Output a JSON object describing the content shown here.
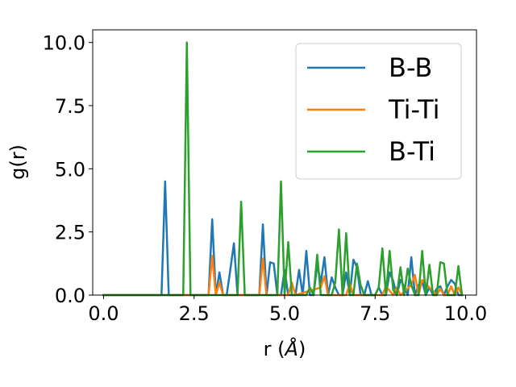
{
  "chart_data": {
    "type": "line",
    "xlabel_main": "r (",
    "xlabel_unit": "Å",
    "xlabel_close": ")",
    "ylabel": "g(r)",
    "xlim": [
      -0.3,
      10.3
    ],
    "ylim": [
      0,
      10.5
    ],
    "xticks": [
      0.0,
      2.5,
      5.0,
      7.5,
      10.0
    ],
    "xtick_labels": [
      "0.0",
      "2.5",
      "5.0",
      "7.5",
      "10.0"
    ],
    "yticks": [
      0.0,
      2.5,
      5.0,
      7.5,
      10.0
    ],
    "ytick_labels": [
      "0.0",
      "2.5",
      "5.0",
      "7.5",
      "10.0"
    ],
    "grid": false,
    "legend_position": "top-right",
    "series": [
      {
        "name": "B-B",
        "color": "#1f77b4",
        "x": [
          0.0,
          1.6,
          1.7,
          1.8,
          1.9,
          2.9,
          3.0,
          3.1,
          3.2,
          3.3,
          3.4,
          3.5,
          3.6,
          3.7,
          4.3,
          4.4,
          4.5,
          4.6,
          4.7,
          4.8,
          4.9,
          5.0,
          5.1,
          5.2,
          5.3,
          5.4,
          5.5,
          5.6,
          5.7,
          5.8,
          5.9,
          6.0,
          6.1,
          6.2,
          6.3,
          6.4,
          6.5,
          6.6,
          6.7,
          6.8,
          6.9,
          7.0,
          7.1,
          7.2,
          7.3,
          7.4,
          7.5,
          7.6,
          7.7,
          7.8,
          7.9,
          8.0,
          8.1,
          8.2,
          8.3,
          8.4,
          8.5,
          8.6,
          8.7,
          8.8,
          8.9,
          9.0,
          9.1,
          9.2,
          9.3,
          9.4,
          9.5,
          9.6,
          9.7,
          9.8,
          9.9
        ],
        "y": [
          0.0,
          0.0,
          4.5,
          0.0,
          0.0,
          0.0,
          3.0,
          0.0,
          0.9,
          0.0,
          0.0,
          1.0,
          2.05,
          0.0,
          0.0,
          2.8,
          0.0,
          1.3,
          1.25,
          0.0,
          0.0,
          1.0,
          0.0,
          0.0,
          0.0,
          1.0,
          0.0,
          1.75,
          0.0,
          0.0,
          1.2,
          0.5,
          1.5,
          0.0,
          0.7,
          0.3,
          0.0,
          0.0,
          0.9,
          0.0,
          1.4,
          1.1,
          0.0,
          0.0,
          0.55,
          0.0,
          0.0,
          0.3,
          0.0,
          0.0,
          0.9,
          0.55,
          0.0,
          0.6,
          0.35,
          0.0,
          1.5,
          0.0,
          0.4,
          0.55,
          0.0,
          0.3,
          0.0,
          0.25,
          0.35,
          0.0,
          0.35,
          0.6,
          0.45,
          0.0,
          0.0
        ]
      },
      {
        "name": "Ti-Ti",
        "color": "#ff7f0e",
        "x": [
          0.0,
          2.9,
          3.0,
          3.1,
          3.2,
          3.3,
          4.3,
          4.4,
          4.5,
          5.1,
          5.2,
          5.3,
          6.0,
          6.1,
          6.2,
          6.7,
          6.8,
          6.9,
          7.7,
          7.8,
          8.0,
          8.1,
          8.2,
          8.5,
          8.6,
          8.7,
          8.8,
          9.2,
          9.3,
          9.4,
          9.5,
          9.6,
          9.7,
          9.8,
          9.9
        ],
        "y": [
          0.0,
          0.0,
          1.55,
          0.0,
          0.5,
          0.0,
          0.0,
          1.45,
          0.0,
          0.0,
          0.5,
          0.0,
          0.3,
          0.75,
          0.0,
          0.0,
          0.45,
          0.0,
          0.0,
          0.35,
          0.0,
          0.3,
          0.0,
          0.4,
          0.8,
          0.0,
          0.6,
          0.0,
          0.25,
          0.0,
          0.0,
          0.35,
          0.0,
          0.3,
          0.0
        ]
      },
      {
        "name": "B-Ti",
        "color": "#2ca02c",
        "x": [
          0.0,
          2.2,
          2.3,
          2.4,
          3.7,
          3.8,
          3.9,
          4.8,
          4.9,
          5.0,
          5.1,
          5.2,
          5.6,
          5.7,
          5.8,
          5.9,
          6.0,
          6.1,
          6.3,
          6.4,
          6.5,
          6.6,
          6.7,
          6.8,
          6.9,
          7.0,
          7.1,
          7.2,
          7.5,
          7.6,
          7.7,
          7.8,
          7.9,
          8.0,
          8.1,
          8.2,
          8.3,
          8.4,
          8.5,
          8.6,
          8.7,
          8.8,
          8.9,
          9.0,
          9.1,
          9.2,
          9.3,
          9.4,
          9.5,
          9.6,
          9.7,
          9.8,
          9.9
        ],
        "y": [
          0.0,
          0.0,
          10.0,
          0.0,
          0.0,
          3.7,
          0.0,
          0.0,
          4.5,
          0.0,
          2.1,
          0.0,
          0.0,
          0.3,
          0.0,
          1.6,
          0.0,
          0.0,
          0.0,
          0.5,
          2.6,
          0.0,
          2.45,
          0.0,
          0.0,
          1.25,
          0.4,
          0.0,
          0.0,
          0.3,
          1.85,
          0.0,
          1.75,
          0.2,
          0.0,
          1.1,
          0.0,
          1.05,
          0.4,
          0.0,
          0.0,
          1.75,
          0.0,
          1.2,
          0.0,
          0.0,
          1.3,
          1.25,
          0.0,
          0.0,
          0.0,
          1.15,
          0.0
        ]
      }
    ]
  }
}
